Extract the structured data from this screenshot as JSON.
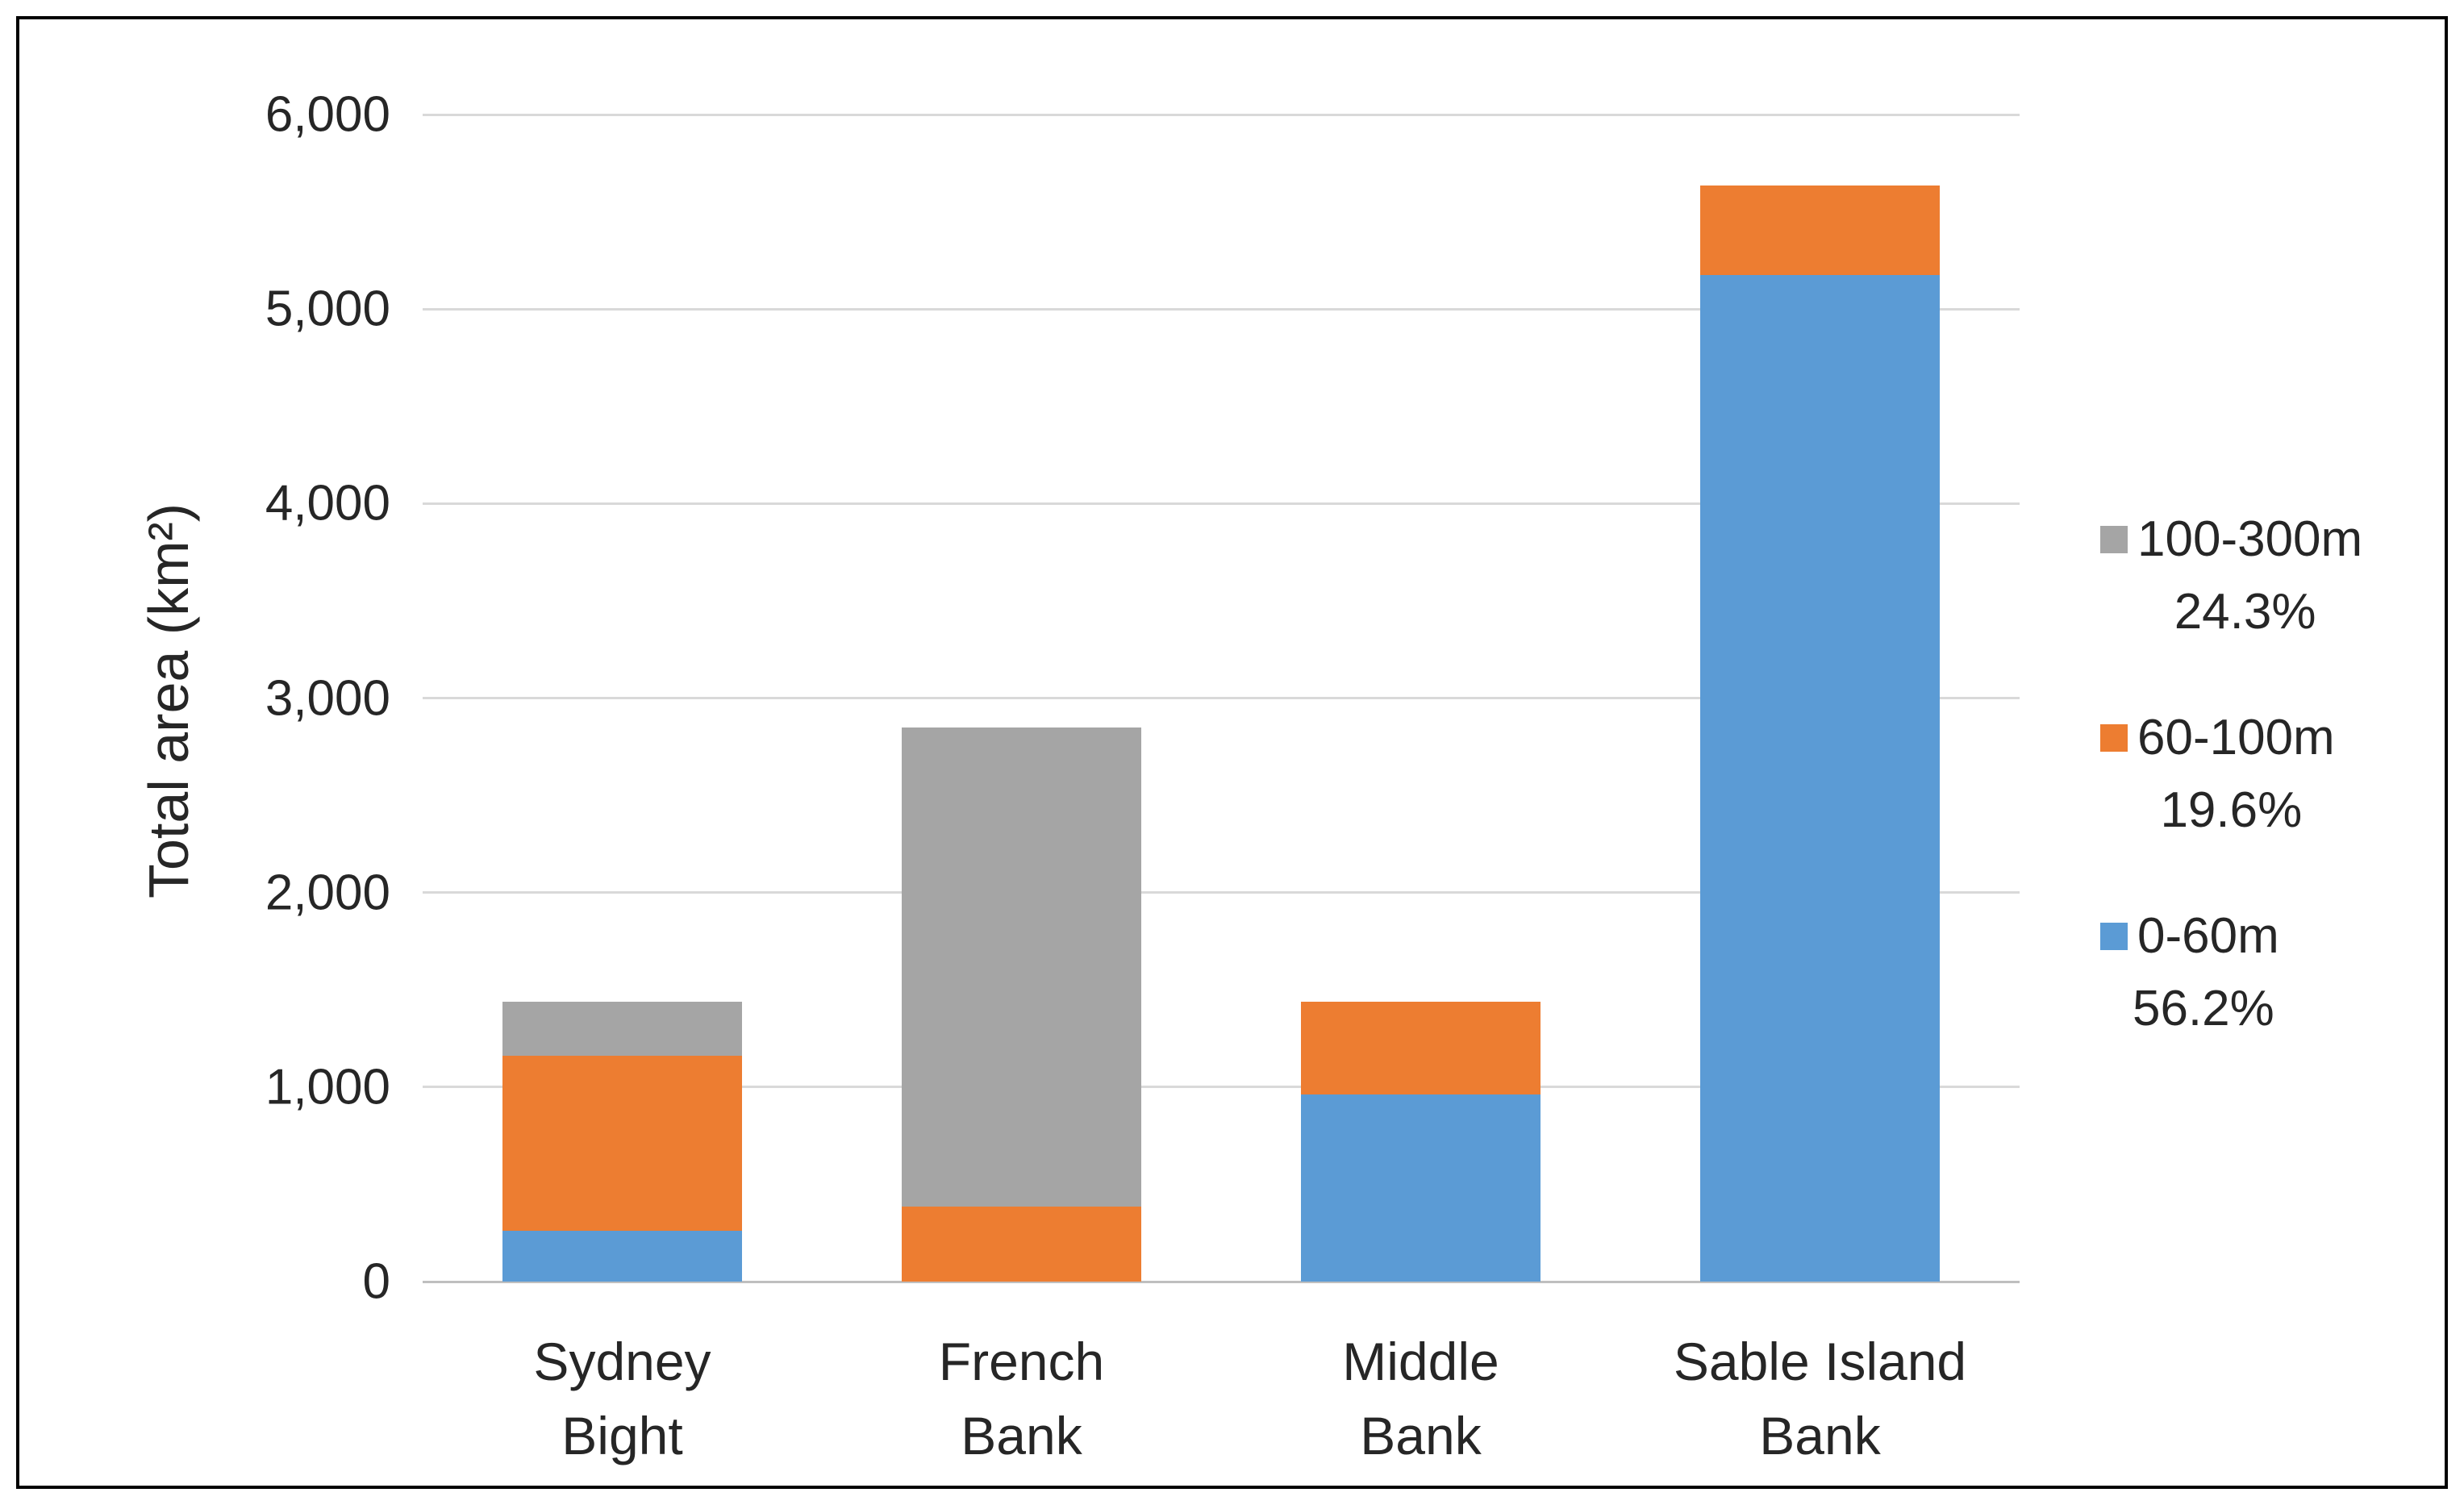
{
  "chart_data": {
    "type": "bar",
    "stacked": true,
    "title": "",
    "xlabel": "",
    "ylabel": "Total area (km²)",
    "ylim": [
      0,
      6000
    ],
    "ytick_interval": 1000,
    "ytick_labels": [
      "0",
      "1,000",
      "2,000",
      "3,000",
      "4,000",
      "5,000",
      "6,000"
    ],
    "grid": true,
    "categories": [
      "Sydney Bight",
      "French Bank",
      "Middle Bank",
      "Sable Island Bank"
    ],
    "category_label_lines": [
      [
        "Sydney",
        "Bight"
      ],
      [
        "French",
        "Bank"
      ],
      [
        "Middle",
        "Bank"
      ],
      [
        "Sable Island",
        "Bank"
      ]
    ],
    "series": [
      {
        "name": "0-60m",
        "color": "#5B9BD5",
        "values": [
          260,
          0,
          960,
          5175
        ],
        "overall_share": "56.2%"
      },
      {
        "name": "60-100m",
        "color": "#ED7D31",
        "values": [
          900,
          385,
          480,
          460
        ],
        "overall_share": "19.6%"
      },
      {
        "name": "100-300m",
        "color": "#A5A5A5",
        "values": [
          280,
          2465,
          0,
          0
        ],
        "overall_share": "24.3%"
      }
    ],
    "legend": {
      "position": "right",
      "entries": [
        {
          "name": "100-300m",
          "pct": "24.3%",
          "color": "#A5A5A5"
        },
        {
          "name": "60-100m",
          "pct": "19.6%",
          "color": "#ED7D31"
        },
        {
          "name": "0-60m",
          "pct": "56.2%",
          "color": "#5B9BD5"
        }
      ]
    }
  },
  "colors": {
    "gridline": "#D9D9D9",
    "axis_line": "#BFBFBF",
    "text": "#262626",
    "frame_border": "#000000",
    "background": "#FFFFFF"
  }
}
